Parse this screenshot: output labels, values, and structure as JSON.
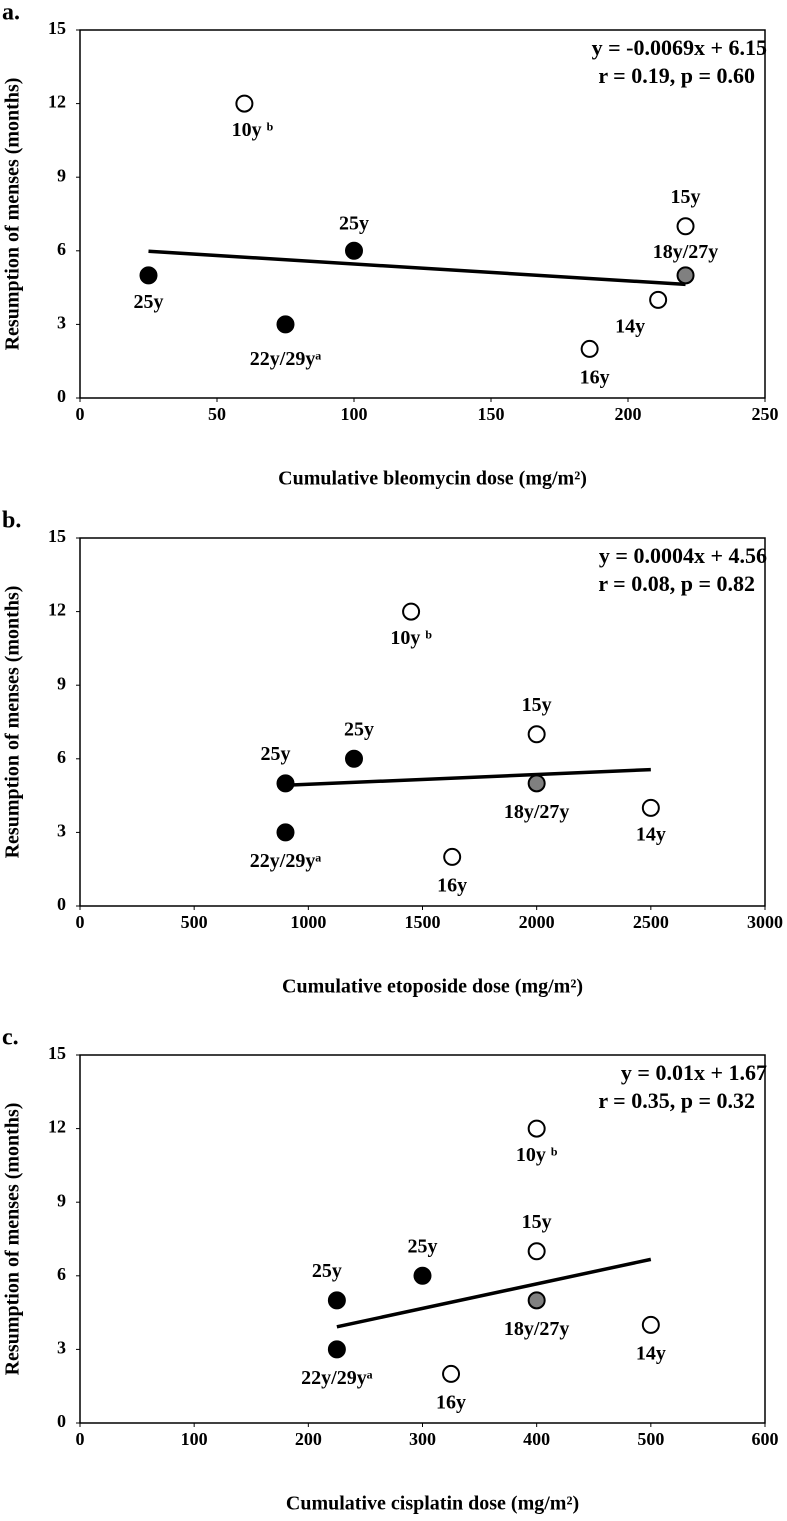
{
  "chart_data": [
    {
      "type": "scatter",
      "panel_label": "a.",
      "y_label": "Resumption of menses (months)",
      "x_label": "Cumulative bleomycin dose (mg/m²)",
      "equation": [
        "y = -0.0069x + 6.15",
        "r = 0.19, p = 0.60"
      ],
      "x": [
        25,
        75,
        100,
        60,
        186,
        211,
        221,
        221
      ],
      "values": [
        5,
        3,
        6,
        12,
        2,
        4,
        7,
        5
      ],
      "point_labels": [
        "25y",
        "22y/29yᵃ",
        "25y",
        "10y ᵇ",
        "16y",
        "14y",
        "15y",
        "18y/27y"
      ],
      "colors": [
        "#000000",
        "#000000",
        "#000000",
        "#ffffff",
        "#ffffff",
        "#ffffff",
        "#ffffff",
        "#808080"
      ],
      "trendline": {
        "x": [
          25,
          221
        ],
        "y": [
          5.98,
          4.63
        ]
      },
      "xlim": [
        0,
        250
      ],
      "xticks": [
        0,
        50,
        100,
        150,
        200,
        250
      ],
      "ylim": [
        0,
        15
      ],
      "yticks": [
        0,
        3,
        6,
        9,
        12,
        15
      ]
    },
    {
      "type": "scatter",
      "panel_label": "b.",
      "y_label": "Resumption of menses (months)",
      "x_label": "Cumulative etoposide dose (mg/m²)",
      "equation": [
        "y = 0.0004x + 4.56",
        "r = 0.08, p = 0.82"
      ],
      "x": [
        900,
        900,
        1200,
        1450,
        1630,
        2500,
        2000,
        2000
      ],
      "values": [
        5,
        3,
        6,
        12,
        2,
        4,
        7,
        5
      ],
      "point_labels": [
        "25y",
        "22y/29yᵃ",
        "25y",
        "10y ᵇ",
        "16y",
        "14y",
        "15y",
        "18y/27y"
      ],
      "colors": [
        "#000000",
        "#000000",
        "#000000",
        "#ffffff",
        "#ffffff",
        "#ffffff",
        "#ffffff",
        "#808080"
      ],
      "trendline": {
        "x": [
          900,
          2500
        ],
        "y": [
          4.92,
          5.56
        ]
      },
      "xlim": [
        0,
        3000
      ],
      "xticks": [
        0,
        500,
        1000,
        1500,
        2000,
        2500,
        3000
      ],
      "ylim": [
        0,
        15
      ],
      "yticks": [
        0,
        3,
        6,
        9,
        12,
        15
      ]
    },
    {
      "type": "scatter",
      "panel_label": "c.",
      "y_label": "Resumption of menses (months)",
      "x_label": "Cumulative cisplatin dose (mg/m²)",
      "equation": [
        "y = 0.01x + 1.67",
        "r = 0.35, p = 0.32"
      ],
      "x": [
        225,
        225,
        300,
        400,
        325,
        500,
        400,
        400
      ],
      "values": [
        5,
        3,
        6,
        12,
        2,
        4,
        7,
        5
      ],
      "point_labels": [
        "25y",
        "22y/29yᵃ",
        "25y",
        "10y ᵇ",
        "16y",
        "14y",
        "15y",
        "18y/27y"
      ],
      "colors": [
        "#000000",
        "#000000",
        "#000000",
        "#ffffff",
        "#ffffff",
        "#ffffff",
        "#ffffff",
        "#808080"
      ],
      "trendline": {
        "x": [
          225,
          500
        ],
        "y": [
          3.92,
          6.67
        ]
      },
      "xlim": [
        0,
        600
      ],
      "xticks": [
        0,
        100,
        200,
        300,
        400,
        500,
        600
      ],
      "ylim": [
        0,
        15
      ],
      "yticks": [
        0,
        3,
        6,
        9,
        12,
        15
      ]
    }
  ]
}
